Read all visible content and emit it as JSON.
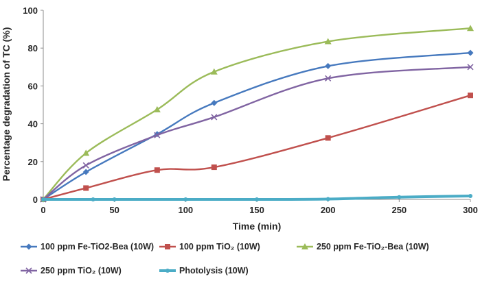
{
  "chart_data": {
    "type": "line",
    "title": "",
    "xlabel": "Time (min)",
    "ylabel": "Percentage degradation of TC (%)",
    "xlim": [
      0,
      300
    ],
    "ylim": [
      0,
      100
    ],
    "xticks": [
      0,
      50,
      100,
      150,
      200,
      250,
      300
    ],
    "yticks": [
      0,
      20,
      40,
      60,
      80,
      100
    ],
    "grid": false,
    "legend_position": "bottom",
    "series": [
      {
        "name": "100 ppm Fe-TiO2-Bea (10W)",
        "color": "#4679be",
        "marker": "diamond",
        "x": [
          0,
          30,
          80,
          120,
          200,
          300
        ],
        "y": [
          0,
          14.5,
          34.5,
          51,
          70.5,
          77.5
        ]
      },
      {
        "name": "100 ppm TiO₂ (10W)",
        "color": "#c0504d",
        "marker": "square",
        "x": [
          0,
          30,
          80,
          120,
          200,
          300
        ],
        "y": [
          0,
          6,
          15.5,
          17,
          32.5,
          55
        ]
      },
      {
        "name": "250 ppm Fe-TiO₂-Bea (10W)",
        "color": "#9bbb59",
        "marker": "triangle",
        "x": [
          0,
          30,
          80,
          120,
          200,
          300
        ],
        "y": [
          0,
          24.5,
          47.5,
          67.5,
          83.5,
          90.5
        ]
      },
      {
        "name": "250 ppm TiO₂ (10W)",
        "color": "#8064a2",
        "marker": "x",
        "x": [
          0,
          30,
          80,
          120,
          200,
          300
        ],
        "y": [
          0,
          18,
          34,
          43.5,
          64,
          70
        ]
      },
      {
        "name": "Photolysis (10W)",
        "color": "#4bacc6",
        "marker": "circle",
        "x": [
          0,
          35,
          50,
          100,
          150,
          200,
          250,
          300
        ],
        "y": [
          0,
          0,
          0,
          0,
          0,
          0.2,
          1.2,
          1.8
        ]
      }
    ]
  }
}
